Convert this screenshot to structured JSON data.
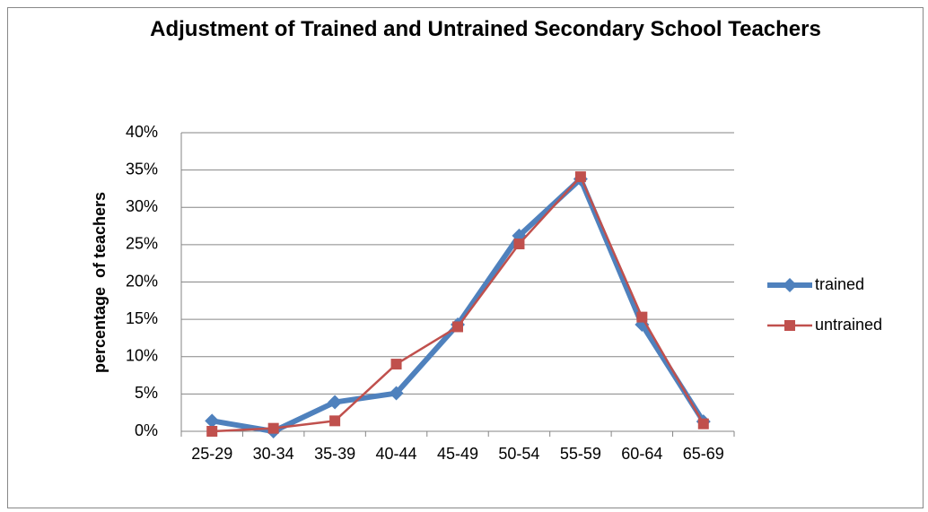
{
  "chart_data": {
    "type": "line",
    "title": "Adjustment of Trained and Untrained Secondary School Teachers",
    "y_label": "percentage  of teachers",
    "categories": [
      "25-29",
      "30-34",
      "35-39",
      "40-44",
      "45-49",
      "50-54",
      "55-59",
      "60-64",
      "65-69"
    ],
    "series": [
      {
        "name": "trained",
        "color": "#4f81bd",
        "values": [
          1.4,
          0,
          3.9,
          5.1,
          14.3,
          26.2,
          33.8,
          14.3,
          1.3
        ]
      },
      {
        "name": "untrained",
        "color": "#c0504d",
        "values": [
          0,
          0.4,
          1.4,
          9.0,
          14.0,
          25.1,
          34.1,
          15.3,
          1.0
        ]
      }
    ],
    "ylim": [
      0,
      40
    ],
    "yticks": [
      {
        "value": 0,
        "label": "0%"
      },
      {
        "value": 5,
        "label": "5%"
      },
      {
        "value": 10,
        "label": "10%"
      },
      {
        "value": 15,
        "label": "15%"
      },
      {
        "value": 20,
        "label": "20%"
      },
      {
        "value": 25,
        "label": "25%"
      },
      {
        "value": 30,
        "label": "30%"
      },
      {
        "value": 35,
        "label": "35%"
      },
      {
        "value": 40,
        "label": "40%"
      }
    ],
    "grid": true,
    "legend": "right"
  }
}
